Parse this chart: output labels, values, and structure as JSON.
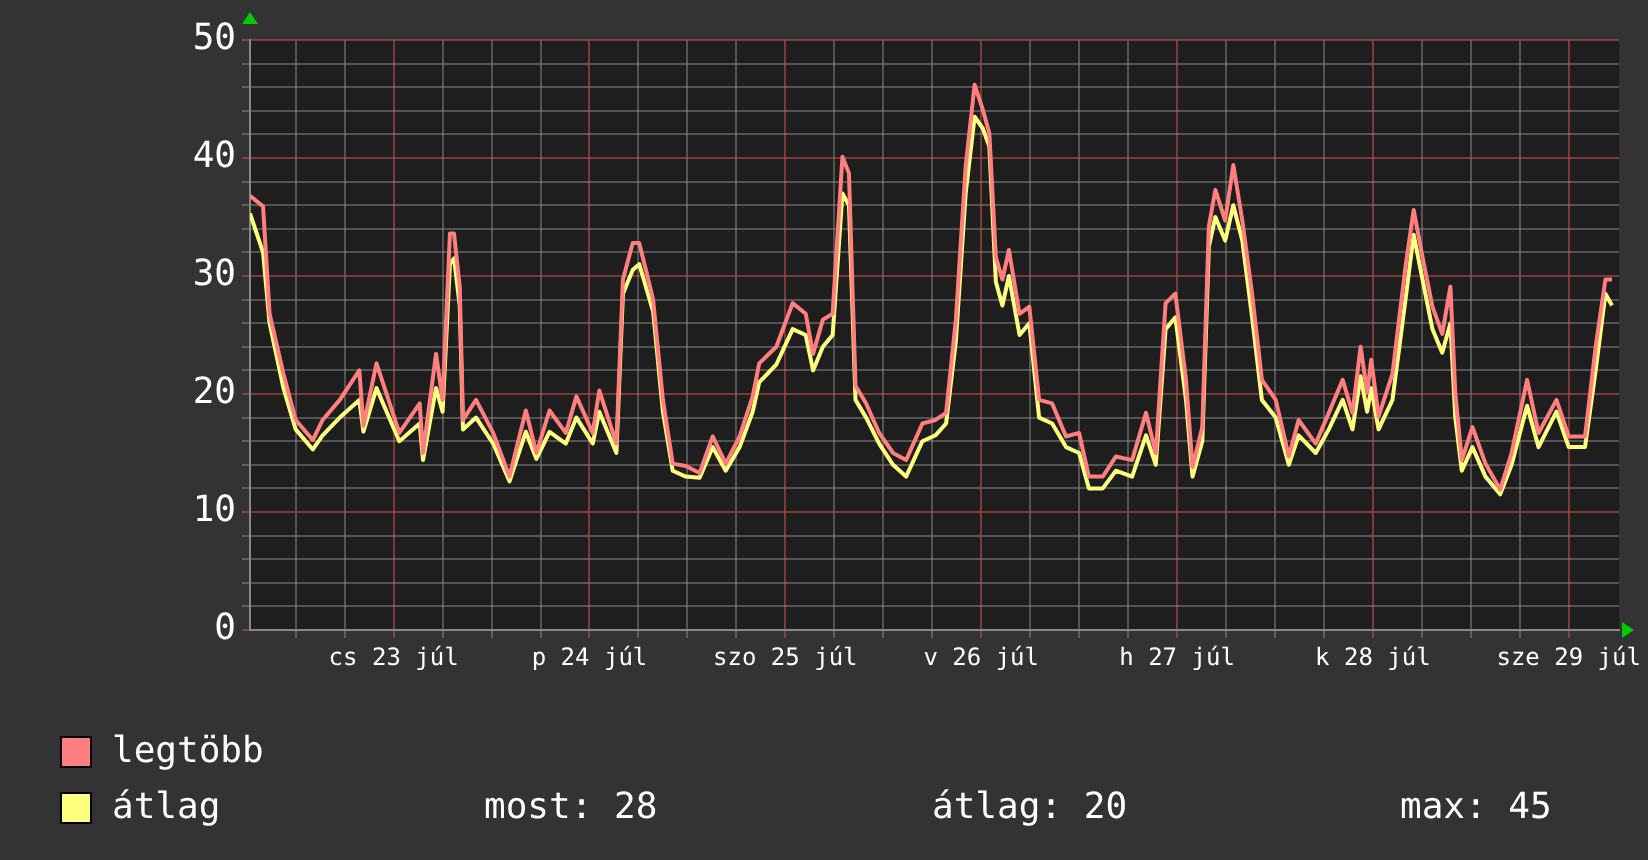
{
  "chart_data": {
    "type": "line",
    "x": [
      "--07-22T18:24",
      "--07-22T20:00",
      "--07-22T20:48",
      "--07-22T22:30",
      "--07-23T00:00",
      "--07-23T02:06",
      "--07-23T03:18",
      "--07-23T05:24",
      "--07-23T07:48",
      "--07-23T08:18",
      "--07-23T09:54",
      "--07-23T12:42",
      "--07-23T15:12",
      "--07-23T15:36",
      "--07-23T17:12",
      "--07-23T18:00",
      "--07-23T18:54",
      "--07-23T19:24",
      "--07-23T20:06",
      "--07-23T20:30",
      "--07-23T22:06",
      "--07-24T00:12",
      "--07-24T02:12",
      "--07-24T04:12",
      "--07-24T05:30",
      "--07-24T07:06",
      "--07-24T09:06",
      "--07-24T10:24",
      "--07-24T12:24",
      "--07-24T13:12",
      "--07-24T15:18",
      "--07-24T16:06",
      "--07-24T17:18",
      "--07-24T18:06",
      "--07-24T19:48",
      "--07-24T21:00",
      "--07-24T22:12",
      "--07-24T23:48",
      "--07-25T01:30",
      "--07-25T03:06",
      "--07-25T04:42",
      "--07-25T06:24",
      "--07-25T08:00",
      "--07-25T08:48",
      "--07-25T10:54",
      "--07-25T12:54",
      "--07-25T14:30",
      "--07-25T15:24",
      "--07-25T16:36",
      "--07-25T17:48",
      "--07-25T19:00",
      "--07-25T19:48",
      "--07-25T20:36",
      "--07-25T21:54",
      "--07-25T23:30",
      "--07-26T01:12",
      "--07-26T02:48",
      "--07-26T04:48",
      "--07-26T06:24",
      "--07-26T07:42",
      "--07-26T08:54",
      "--07-26T10:06",
      "--07-26T11:12",
      "--07-26T12:12",
      "--07-26T13:00",
      "--07-26T13:48",
      "--07-26T14:36",
      "--07-26T15:24",
      "--07-26T16:42",
      "--07-26T17:54",
      "--07-26T19:06",
      "--07-26T20:42",
      "--07-26T22:24",
      "--07-27T00:00",
      "--07-27T01:12",
      "--07-27T02:54",
      "--07-27T04:30",
      "--07-27T06:30",
      "--07-27T08:12",
      "--07-27T09:24",
      "--07-27T10:36",
      "--07-27T11:48",
      "--07-27T13:06",
      "--07-27T13:54",
      "--07-27T15:06",
      "--07-27T15:54",
      "--07-27T16:42",
      "--07-27T17:54",
      "--07-27T18:54",
      "--07-27T20:00",
      "--07-27T21:12",
      "--07-27T22:24",
      "--07-28T00:06",
      "--07-28T01:42",
      "--07-28T02:54",
      "--07-28T05:00",
      "--07-28T06:36",
      "--07-28T08:18",
      "--07-28T09:30",
      "--07-28T10:30",
      "--07-28T11:18",
      "--07-28T11:48",
      "--07-28T12:42",
      "--07-28T14:24",
      "--07-28T16:00",
      "--07-28T17:00",
      "--07-28T18:00",
      "--07-28T19:18",
      "--07-28T20:30",
      "--07-28T21:30",
      "--07-28T22:06",
      "--07-28T22:54",
      "--07-29T00:12",
      "--07-29T01:48",
      "--07-29T03:36",
      "--07-29T05:00",
      "--07-29T06:54",
      "--07-29T08:18",
      "--07-29T10:30",
      "--07-29T12:00",
      "--07-29T14:00",
      "--07-29T15:18",
      "--07-29T16:30",
      "--07-29T17:18"
    ],
    "series": [
      {
        "name": "legtöbb",
        "color": "#ff7f7f",
        "values": [
          36.8,
          35.9,
          26.8,
          21.7,
          17.8,
          16.1,
          17.8,
          19.5,
          22,
          17.3,
          22.6,
          16.7,
          19.2,
          15,
          23.4,
          19.5,
          33.6,
          33.6,
          29.1,
          17.8,
          19.5,
          16.7,
          13,
          18.6,
          15,
          18.6,
          16.7,
          19.8,
          16.7,
          20.3,
          15.8,
          29.7,
          32.8,
          32.8,
          28,
          19.5,
          14.1,
          13.9,
          13.3,
          16.4,
          14.1,
          16.4,
          19.8,
          22.6,
          24,
          27.7,
          26.8,
          23.4,
          26.3,
          26.8,
          40.1,
          38.7,
          20.7,
          19.2,
          16.7,
          15,
          14.4,
          17.5,
          17.8,
          18.4,
          26.3,
          39.3,
          46.2,
          44.1,
          42.1,
          31.6,
          29.7,
          32.2,
          26.8,
          27.4,
          19.5,
          19.2,
          16.4,
          16.7,
          13,
          13,
          14.7,
          14.4,
          18.4,
          15,
          27.7,
          28.5,
          21.2,
          13.8,
          17.2,
          34.2,
          37.3,
          34.7,
          39.4,
          34.7,
          28.5,
          21.2,
          19.5,
          14.7,
          17.8,
          15.8,
          18.4,
          21.2,
          18.4,
          24,
          20.1,
          22.9,
          18.1,
          21.7,
          30.8,
          35.6,
          31.9,
          27.4,
          25.1,
          29.1,
          20.1,
          14.4,
          17.2,
          14.1,
          11.9,
          15,
          21.2,
          16.7,
          19.5,
          16.4,
          16.4,
          24,
          29.7,
          29.7
        ]
      },
      {
        "name": "átlag",
        "color": "#ffff7f",
        "values": [
          35.3,
          32,
          26,
          20.5,
          17,
          15.3,
          16.5,
          18,
          19.5,
          16.8,
          20.5,
          16,
          17.5,
          14.4,
          20.5,
          18.5,
          31,
          31.5,
          27.5,
          17,
          18,
          15.8,
          12.6,
          16.8,
          14.5,
          16.8,
          15.8,
          18,
          15.8,
          18.5,
          15,
          28.5,
          30.5,
          31,
          27,
          18.5,
          13.5,
          13,
          12.9,
          15.5,
          13.5,
          15.5,
          18.5,
          21,
          22.5,
          25.5,
          25,
          22,
          24,
          25,
          37,
          36,
          19.5,
          18,
          15.8,
          14,
          13,
          16,
          16.5,
          17.5,
          24.5,
          37,
          43.5,
          42.5,
          41,
          29.5,
          27.5,
          30,
          25,
          26,
          18,
          17.5,
          15.5,
          15,
          12,
          12,
          13.5,
          13,
          16.5,
          14,
          25.5,
          26.5,
          19.5,
          13,
          16,
          32.5,
          35,
          33,
          36,
          33,
          26.5,
          19.5,
          18,
          14,
          16.5,
          15,
          17,
          19.5,
          17,
          21.5,
          18.5,
          20.5,
          17,
          19.5,
          28,
          33.5,
          30,
          25.5,
          23.5,
          26,
          18,
          13.5,
          15.5,
          13,
          11.5,
          14,
          19,
          15.5,
          18.5,
          15.5,
          15.5,
          22,
          28.5,
          27.5
        ]
      }
    ],
    "xlim": [
      "--07-22T18:24",
      "--07-29T18:12"
    ],
    "xticks": [
      {
        "value": "--07-23T00:00",
        "label": null
      },
      {
        "value": "--07-23T06:00",
        "label": null
      },
      {
        "value": "--07-23T12:00",
        "label": "cs 23 júl"
      },
      {
        "value": "--07-23T18:00",
        "label": null
      },
      {
        "value": "--07-24T00:00",
        "label": null
      },
      {
        "value": "--07-24T06:00",
        "label": null
      },
      {
        "value": "--07-24T12:00",
        "label": "p 24 júl"
      },
      {
        "value": "--07-24T18:00",
        "label": null
      },
      {
        "value": "--07-25T00:00",
        "label": null
      },
      {
        "value": "--07-25T06:00",
        "label": null
      },
      {
        "value": "--07-25T12:00",
        "label": "szo 25 júl"
      },
      {
        "value": "--07-25T18:00",
        "label": null
      },
      {
        "value": "--07-26T00:00",
        "label": null
      },
      {
        "value": "--07-26T06:00",
        "label": null
      },
      {
        "value": "--07-26T12:00",
        "label": "v 26 júl"
      },
      {
        "value": "--07-26T18:00",
        "label": null
      },
      {
        "value": "--07-27T00:00",
        "label": null
      },
      {
        "value": "--07-27T06:00",
        "label": null
      },
      {
        "value": "--07-27T12:00",
        "label": "h 27 júl"
      },
      {
        "value": "--07-27T18:00",
        "label": null
      },
      {
        "value": "--07-28T00:00",
        "label": null
      },
      {
        "value": "--07-28T06:00",
        "label": null
      },
      {
        "value": "--07-28T12:00",
        "label": "k 28 júl"
      },
      {
        "value": "--07-28T18:00",
        "label": null
      },
      {
        "value": "--07-29T00:00",
        "label": null
      },
      {
        "value": "--07-29T06:00",
        "label": null
      },
      {
        "value": "--07-29T12:00",
        "label": "sze 29 júl"
      }
    ],
    "ylim": [
      0,
      50
    ],
    "yticks": [
      0,
      {
        "value": 2,
        "label": null
      },
      {
        "value": 4,
        "label": null
      },
      {
        "value": 6,
        "label": null
      },
      {
        "value": 8,
        "label": null
      },
      10,
      {
        "value": 12,
        "label": null
      },
      {
        "value": 14,
        "label": null
      },
      {
        "value": 16,
        "label": null
      },
      {
        "value": 18,
        "label": null
      },
      20,
      {
        "value": 22,
        "label": null
      },
      {
        "value": 24,
        "label": null
      },
      {
        "value": 26,
        "label": null
      },
      {
        "value": 28,
        "label": null
      },
      30,
      {
        "value": 32,
        "label": null
      },
      {
        "value": 34,
        "label": null
      },
      {
        "value": 36,
        "label": null
      },
      {
        "value": 38,
        "label": null
      },
      40,
      {
        "value": 42,
        "label": null
      },
      {
        "value": 44,
        "label": null
      },
      {
        "value": 46,
        "label": null
      },
      {
        "value": 48,
        "label": null
      },
      50
    ],
    "grid": true,
    "legend": "bottom left",
    "marker": "none",
    "line_style": "solid",
    "annotations": [
      "most: 28",
      "átlag: 20",
      "max: 45"
    ]
  }
}
